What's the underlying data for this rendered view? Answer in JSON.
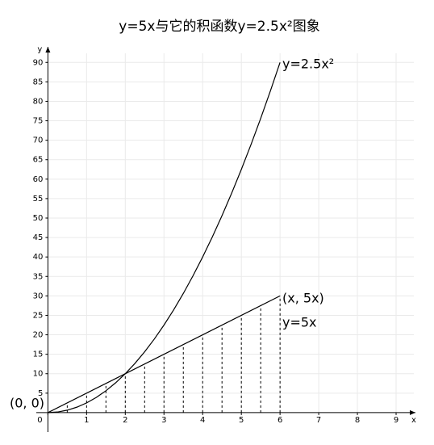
{
  "chart_data": {
    "type": "line",
    "title": "y=5x与它的积函数y=2.5x²图象",
    "xlabel": "x",
    "ylabel": "y",
    "xlim": [
      -0.3,
      9.5
    ],
    "ylim": [
      -5,
      94
    ],
    "xticks": [
      0,
      1,
      2,
      3,
      4,
      5,
      6,
      7,
      8,
      9
    ],
    "yticks": [
      5,
      10,
      15,
      20,
      25,
      30,
      35,
      40,
      45,
      50,
      55,
      60,
      65,
      70,
      75,
      80,
      85,
      90
    ],
    "grid": true,
    "series": [
      {
        "name": "y=5x",
        "color": "#000000",
        "x": [
          0,
          6
        ],
        "values": [
          0,
          30
        ]
      },
      {
        "name": "y=2.5x²",
        "color": "#000000",
        "x": [
          0,
          0.25,
          0.5,
          0.75,
          1,
          1.25,
          1.5,
          1.75,
          2,
          2.25,
          2.5,
          2.75,
          3,
          3.25,
          3.5,
          3.75,
          4,
          4.25,
          4.5,
          4.75,
          5,
          5.25,
          5.5,
          5.75,
          6
        ],
        "values": [
          0,
          0.15625,
          0.625,
          1.40625,
          2.5,
          3.90625,
          5.625,
          7.65625,
          10,
          12.65625,
          15.625,
          18.90625,
          22.5,
          26.40625,
          30.625,
          35.15625,
          40,
          45.15625,
          50.625,
          56.40625,
          62.5,
          68.90625,
          75.625,
          82.65625,
          90
        ]
      }
    ],
    "strips": {
      "x": [
        0.5,
        1,
        1.5,
        2,
        2.5,
        3,
        3.5,
        4,
        4.5,
        5,
        5.5,
        6
      ],
      "values": [
        2.5,
        5,
        7.5,
        10,
        12.5,
        15,
        17.5,
        20,
        22.5,
        25,
        27.5,
        30
      ]
    },
    "annotations": [
      "y=2.5x²",
      "(x, 5x)",
      "y=5x",
      "(0, 0)"
    ]
  }
}
